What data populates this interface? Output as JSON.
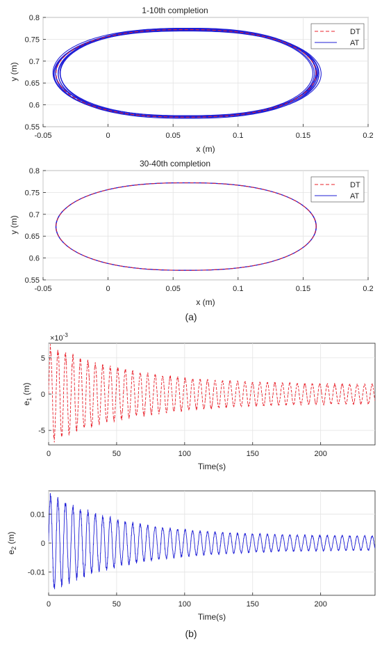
{
  "chart_data": [
    {
      "type": "line",
      "title": "1-10th completion",
      "xlabel": "x (m)",
      "ylabel": "y (m)",
      "xlim": [
        -0.05,
        0.2
      ],
      "ylim": [
        0.55,
        0.8
      ],
      "xticks": [
        "-0.05",
        "0",
        "0.05",
        "0.1",
        "0.15",
        "0.2"
      ],
      "yticks": [
        "0.55",
        "0.6",
        "0.65",
        "0.7",
        "0.75",
        "0.8"
      ],
      "grid": true,
      "legend_position": "top-right",
      "ellipse": {
        "center_x": 0.06,
        "center_y": 0.672,
        "radius_x": 0.1,
        "radius_y": 0.1
      },
      "series": [
        {
          "name": "DT",
          "style": "dashed",
          "color": "#e8202a",
          "laps": 1
        },
        {
          "name": "AT",
          "style": "solid",
          "color": "#1f1fd6",
          "laps": 10
        }
      ]
    },
    {
      "type": "line",
      "title": "30-40th completion",
      "xlabel": "x (m)",
      "ylabel": "y (m)",
      "xlim": [
        -0.05,
        0.2
      ],
      "ylim": [
        0.55,
        0.8
      ],
      "xticks": [
        "-0.05",
        "0",
        "0.05",
        "0.1",
        "0.15",
        "0.2"
      ],
      "yticks": [
        "0.55",
        "0.6",
        "0.65",
        "0.7",
        "0.75",
        "0.8"
      ],
      "grid": true,
      "legend_position": "top-right",
      "ellipse": {
        "center_x": 0.06,
        "center_y": 0.672,
        "radius_x": 0.1,
        "radius_y": 0.1
      },
      "series": [
        {
          "name": "DT",
          "style": "dashed",
          "color": "#e8202a",
          "laps": 1
        },
        {
          "name": "AT",
          "style": "solid",
          "color": "#1f1fd6",
          "laps": 2
        }
      ]
    },
    {
      "type": "line",
      "title": "",
      "xlabel": "Time(s)",
      "ylabel_main": "e",
      "ylabel_sub": "1",
      "ylabel_unit": " (m)",
      "multiplier_base": "×10",
      "multiplier_exp": "-3",
      "xlim": [
        0,
        240
      ],
      "ylim": [
        -7,
        7
      ],
      "xticks": [
        "0",
        "50",
        "100",
        "150",
        "200"
      ],
      "yticks": [
        "-5",
        "0",
        "5"
      ],
      "grid": true,
      "series": [
        {
          "style": "dashed",
          "color": "#e8202a",
          "period_s": 5.5,
          "peak_start": 6.5,
          "peak_end": 1.2,
          "decay_s": 60
        }
      ]
    },
    {
      "type": "line",
      "title": "",
      "xlabel": "Time(s)",
      "ylabel_main": "e",
      "ylabel_sub": "2",
      "ylabel_unit": " (m)",
      "xlim": [
        0,
        240
      ],
      "ylim": [
        -0.018,
        0.018
      ],
      "xticks": [
        "0",
        "50",
        "100",
        "150",
        "200"
      ],
      "yticks": [
        "-0.01",
        "0",
        "0.01"
      ],
      "grid": true,
      "series": [
        {
          "style": "solid",
          "color": "#1f1fd6",
          "period_s": 5.5,
          "peak_start": 0.0165,
          "peak_end": 0.0022,
          "decay_s": 55
        }
      ]
    }
  ],
  "captions": {
    "a": "(a)",
    "b": "(b)"
  }
}
